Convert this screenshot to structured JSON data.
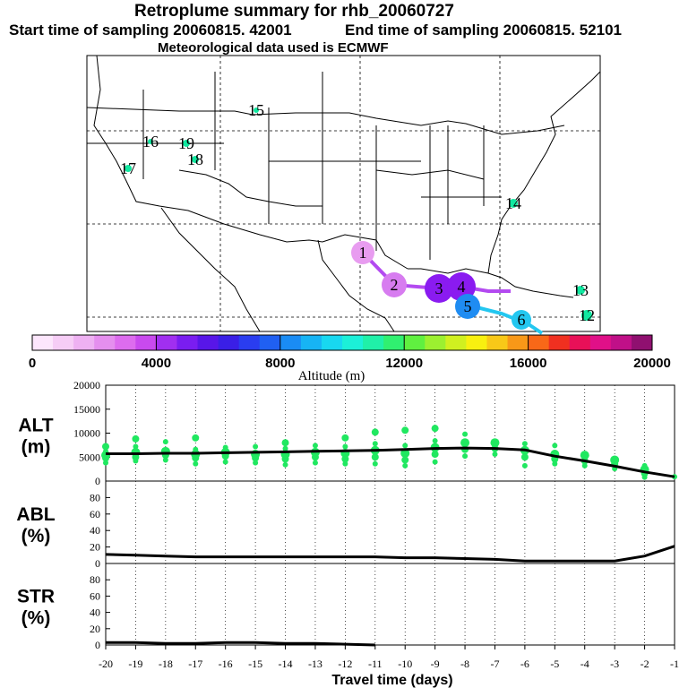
{
  "header": {
    "title": "Retroplume summary for rhb_20060727",
    "start_label": "Start time of sampling 20060815. 42001",
    "end_label": "End time of sampling 20060815. 52101",
    "met_label": "Meteorological data used is ECMWF"
  },
  "map": {
    "points": [
      {
        "label": "1",
        "color": "#e89cf0"
      },
      {
        "label": "2",
        "color": "#d77cf0"
      },
      {
        "label": "3",
        "color": "#8a1bf0"
      },
      {
        "label": "4",
        "color": "#8a1bf0"
      },
      {
        "label": "5",
        "color": "#1f8cf2"
      },
      {
        "label": "6",
        "color": "#23c7f0"
      },
      {
        "label": "12",
        "color": "#10e8a0"
      },
      {
        "label": "13",
        "color": "#10e8a0"
      },
      {
        "label": "14",
        "color": "#10e8a0"
      },
      {
        "label": "15",
        "color": "#10e8a0"
      },
      {
        "label": "16",
        "color": "#10e8a0"
      },
      {
        "label": "17",
        "color": "#10e8a0"
      },
      {
        "label": "18",
        "color": "#10e8a0"
      },
      {
        "label": "19",
        "color": "#10e8a0"
      }
    ]
  },
  "colorbar": {
    "label": "Altitude (m)",
    "ticks": [
      "0",
      "4000",
      "8000",
      "12000",
      "16000",
      "20000"
    ],
    "colors": [
      "#fce6fc",
      "#f6cdf6",
      "#eeb1f2",
      "#e58fee",
      "#dd6cee",
      "#c94aee",
      "#a12ff0",
      "#7a1df0",
      "#5816e8",
      "#3a1fe6",
      "#2a3df0",
      "#2060f2",
      "#1a8cf4",
      "#17b4f4",
      "#18d8f0",
      "#1cf0d8",
      "#20f0a8",
      "#30f070",
      "#60f040",
      "#9cf030",
      "#d0f020",
      "#f8f010",
      "#f8c818",
      "#f89818",
      "#f86818",
      "#f03020",
      "#e81058",
      "#e01088",
      "#c01088",
      "#901070"
    ]
  },
  "chart_data": [
    {
      "type": "line",
      "title": "ALT (m)",
      "ylabel": "ALT (m)",
      "xlabel": "Travel time (days)",
      "x": [
        -20,
        -19,
        -18,
        -17,
        -16,
        -15,
        -14,
        -13,
        -12,
        -11,
        -10,
        -9,
        -8,
        -7,
        -6,
        -5,
        -4,
        -3,
        -2,
        -1
      ],
      "ylim": [
        0,
        20000
      ],
      "yticks": [
        "20000",
        "15000",
        "10000",
        "5000",
        "0"
      ],
      "series": [
        {
          "name": "mean altitude",
          "values": [
            5700,
            5700,
            5800,
            5800,
            5900,
            6000,
            6100,
            6200,
            6300,
            6400,
            6600,
            6800,
            6900,
            6800,
            6500,
            5200,
            4200,
            3100,
            1900,
            900
          ]
        }
      ],
      "scatter": [
        {
          "x": -20,
          "y": [
            3800,
            4800,
            5400,
            6200,
            7200
          ]
        },
        {
          "x": -19,
          "y": [
            4200,
            5000,
            6000,
            7200,
            8800
          ]
        },
        {
          "x": -18,
          "y": [
            4400,
            5400,
            6200,
            8200
          ]
        },
        {
          "x": -17,
          "y": [
            3600,
            4800,
            5600,
            6600,
            9000
          ]
        },
        {
          "x": -16,
          "y": [
            4000,
            5200,
            6000,
            7000
          ]
        },
        {
          "x": -15,
          "y": [
            3800,
            4800,
            5600,
            7200
          ]
        },
        {
          "x": -14,
          "y": [
            3400,
            4600,
            5600,
            6800,
            8000
          ]
        },
        {
          "x": -13,
          "y": [
            3800,
            5000,
            6000,
            7400
          ]
        },
        {
          "x": -12,
          "y": [
            3600,
            4600,
            5800,
            7200,
            9000
          ]
        },
        {
          "x": -11,
          "y": [
            3600,
            5000,
            6400,
            7800,
            10200
          ]
        },
        {
          "x": -10,
          "y": [
            3200,
            4400,
            5800,
            7400,
            10600
          ]
        },
        {
          "x": -9,
          "y": [
            4000,
            5600,
            7000,
            8400,
            11000
          ]
        },
        {
          "x": -8,
          "y": [
            5200,
            6600,
            8000,
            9800
          ]
        },
        {
          "x": -7,
          "y": [
            5600,
            6800,
            8000
          ]
        },
        {
          "x": -6,
          "y": [
            3200,
            5000,
            6400,
            7800
          ]
        },
        {
          "x": -5,
          "y": [
            3600,
            4600,
            5600,
            7400
          ]
        },
        {
          "x": -4,
          "y": [
            3200,
            4200,
            5400
          ]
        },
        {
          "x": -3,
          "y": [
            2600,
            3600,
            4400
          ]
        },
        {
          "x": -2,
          "y": [
            800,
            1600,
            2400,
            3200
          ]
        },
        {
          "x": -1,
          "y": [
            900
          ]
        }
      ]
    },
    {
      "type": "line",
      "title": "ABL (%)",
      "ylabel": "ABL (%)",
      "x": [
        -20,
        -19,
        -18,
        -17,
        -16,
        -15,
        -14,
        -13,
        -12,
        -11,
        -10,
        -9,
        -8,
        -7,
        -6,
        -5,
        -4,
        -3,
        -2,
        -1
      ],
      "ylim": [
        0,
        100
      ],
      "yticks": [
        "80",
        "60",
        "40",
        "20",
        "0"
      ],
      "series": [
        {
          "name": "ABL fraction",
          "values": [
            11,
            10,
            9,
            8,
            8,
            8,
            8,
            8,
            8,
            8,
            7,
            7,
            6,
            5,
            3,
            3,
            3,
            3,
            9,
            21
          ]
        }
      ]
    },
    {
      "type": "line",
      "title": "STR (%)",
      "ylabel": "STR (%)",
      "x": [
        -20,
        -19,
        -18,
        -17,
        -16,
        -15,
        -14,
        -13,
        -12,
        -11
      ],
      "ylim": [
        0,
        100
      ],
      "yticks": [
        "80",
        "60",
        "40",
        "20",
        "0"
      ],
      "xticks": [
        "-20",
        "-19",
        "-18",
        "-17",
        "-16",
        "-15",
        "-14",
        "-13",
        "-12",
        "-11",
        "-10",
        "-9",
        "-8",
        "-7",
        "-6",
        "-5",
        "-4",
        "-3",
        "-2",
        "-1"
      ],
      "series": [
        {
          "name": "STR fraction",
          "values": [
            3,
            3,
            2,
            2,
            3,
            3,
            2,
            2,
            1,
            0
          ]
        }
      ]
    }
  ],
  "panel_labels": {
    "alt": [
      "ALT",
      "(m)"
    ],
    "abl": [
      "ABL",
      "(%)"
    ],
    "str": [
      "STR",
      "(%)"
    ]
  },
  "xaxis": {
    "label": "Travel time (days)"
  }
}
